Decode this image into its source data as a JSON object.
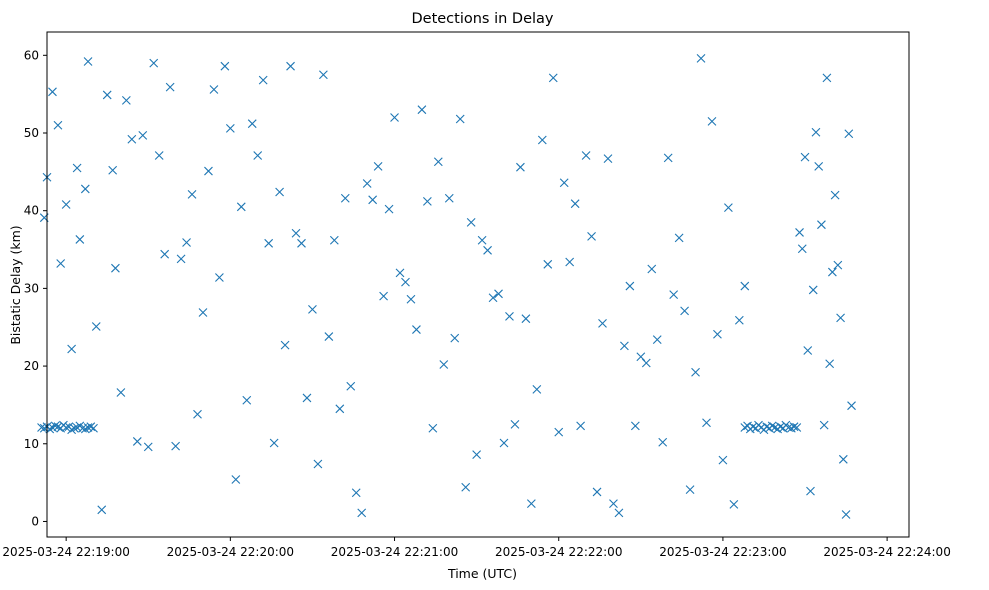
{
  "chart_data": {
    "type": "scatter",
    "title": "Detections in Delay",
    "xlabel": "Time (UTC)",
    "ylabel": "Bistatic Delay (km)",
    "marker": "x",
    "color": "#1f77b4",
    "grid": false,
    "x_ticks": [
      "2025-03-24 22:19:00",
      "2025-03-24 22:20:00",
      "2025-03-24 22:21:00",
      "2025-03-24 22:22:00",
      "2025-03-24 22:23:00",
      "2025-03-24 22:24:00"
    ],
    "y_ticks": [
      0,
      10,
      20,
      30,
      40,
      50,
      60
    ],
    "xlim": [
      "2025-03-24 22:18:53",
      "2025-03-24 22:24:08"
    ],
    "ylim": [
      -2,
      63
    ],
    "series": [
      {
        "x": [
          "22:18:51",
          "22:18:52",
          "22:18:53",
          "22:18:54",
          "22:18:55",
          "22:18:56",
          "22:18:57",
          "22:18:58",
          "22:18:59",
          "22:19:00",
          "22:19:01",
          "22:19:02",
          "22:19:03",
          "22:19:04",
          "22:19:05",
          "22:19:06",
          "22:19:07",
          "22:19:08",
          "22:19:09",
          "22:19:10",
          "22:18:52",
          "22:18:53",
          "22:18:55",
          "22:18:57",
          "22:18:58",
          "22:19:00",
          "22:19:02",
          "22:19:04",
          "22:19:05",
          "22:19:07",
          "22:19:08",
          "22:19:11",
          "22:19:13",
          "22:19:15",
          "22:19:17",
          "22:19:18",
          "22:19:20",
          "22:19:22",
          "22:19:24",
          "22:19:26",
          "22:19:28",
          "22:19:30",
          "22:19:32",
          "22:19:34",
          "22:19:36",
          "22:19:38",
          "22:19:40",
          "22:19:42",
          "22:19:44",
          "22:19:46",
          "22:19:48",
          "22:19:50",
          "22:19:52",
          "22:19:54",
          "22:19:56",
          "22:19:58",
          "22:20:00",
          "22:20:02",
          "22:20:04",
          "22:20:06",
          "22:20:08",
          "22:20:10",
          "22:20:12",
          "22:20:14",
          "22:20:16",
          "22:20:18",
          "22:20:20",
          "22:20:22",
          "22:20:24",
          "22:20:26",
          "22:20:28",
          "22:20:30",
          "22:20:32",
          "22:20:34",
          "22:20:36",
          "22:20:38",
          "22:20:40",
          "22:20:42",
          "22:20:44",
          "22:20:46",
          "22:20:48",
          "22:20:50",
          "22:20:52",
          "22:20:54",
          "22:20:56",
          "22:20:58",
          "22:21:00",
          "22:21:02",
          "22:21:04",
          "22:21:06",
          "22:21:08",
          "22:21:10",
          "22:21:12",
          "22:21:14",
          "22:21:16",
          "22:21:18",
          "22:21:20",
          "22:21:22",
          "22:21:24",
          "22:21:26",
          "22:21:28",
          "22:21:30",
          "22:21:32",
          "22:21:34",
          "22:21:36",
          "22:21:38",
          "22:21:40",
          "22:21:42",
          "22:21:44",
          "22:21:46",
          "22:21:48",
          "22:21:50",
          "22:21:52",
          "22:21:54",
          "22:21:56",
          "22:21:58",
          "22:22:00",
          "22:22:02",
          "22:22:04",
          "22:22:06",
          "22:22:08",
          "22:22:10",
          "22:22:12",
          "22:22:14",
          "22:22:16",
          "22:22:18",
          "22:22:20",
          "22:22:22",
          "22:22:24",
          "22:22:26",
          "22:22:28",
          "22:22:30",
          "22:22:32",
          "22:22:34",
          "22:22:36",
          "22:22:38",
          "22:22:40",
          "22:22:42",
          "22:22:44",
          "22:22:46",
          "22:22:48",
          "22:22:50",
          "22:22:52",
          "22:22:54",
          "22:22:56",
          "22:22:58",
          "22:23:00",
          "22:23:02",
          "22:23:04",
          "22:23:06",
          "22:23:08",
          "22:23:08",
          "22:23:09",
          "22:23:10",
          "22:23:11",
          "22:23:12",
          "22:23:13",
          "22:23:14",
          "22:23:15",
          "22:23:16",
          "22:23:17",
          "22:23:18",
          "22:23:19",
          "22:23:20",
          "22:23:21",
          "22:23:22",
          "22:23:23",
          "22:23:24",
          "22:23:25",
          "22:23:26",
          "22:23:27",
          "22:23:28",
          "22:23:29",
          "22:23:30",
          "22:23:31",
          "22:23:32",
          "22:23:33",
          "22:23:34",
          "22:23:35",
          "22:23:36",
          "22:23:37",
          "22:23:38",
          "22:23:39",
          "22:23:40",
          "22:23:41",
          "22:23:42",
          "22:23:43",
          "22:23:44",
          "22:23:45",
          "22:23:46",
          "22:23:47"
        ],
        "y": [
          12.1,
          12.0,
          12.2,
          11.9,
          12.1,
          12.3,
          12.2,
          12.0,
          12.4,
          12.1,
          12.2,
          11.8,
          12.0,
          12.1,
          12.3,
          12.0,
          11.9,
          12.1,
          12.2,
          12.0,
          39.1,
          44.3,
          55.3,
          51.0,
          33.2,
          40.8,
          22.2,
          45.5,
          36.3,
          42.8,
          59.2,
          25.1,
          1.5,
          54.9,
          45.2,
          32.6,
          16.6,
          54.2,
          49.2,
          10.3,
          49.7,
          9.6,
          59.0,
          47.1,
          34.4,
          55.9,
          9.7,
          33.8,
          35.9,
          42.1,
          13.8,
          26.9,
          45.1,
          55.6,
          31.4,
          58.6,
          50.6,
          5.4,
          40.5,
          15.6,
          51.2,
          47.1,
          56.8,
          35.8,
          10.1,
          42.4,
          22.7,
          58.6,
          37.1,
          35.8,
          15.9,
          27.3,
          7.4,
          57.5,
          23.8,
          36.2,
          14.5,
          41.6,
          17.4,
          3.7,
          1.1,
          43.5,
          41.4,
          45.7,
          29.0,
          40.2,
          52.0,
          32.0,
          30.8,
          28.6,
          24.7,
          53.0,
          41.2,
          12.0,
          46.3,
          20.2,
          41.6,
          23.6,
          51.8,
          4.4,
          38.5,
          8.6,
          36.2,
          34.9,
          28.8,
          29.3,
          10.1,
          26.4,
          12.5,
          45.6,
          26.1,
          2.3,
          17.0,
          49.1,
          33.1,
          57.1,
          11.5,
          43.6,
          33.4,
          40.9,
          12.3,
          47.1,
          36.7,
          3.8,
          25.5,
          46.7,
          2.3,
          1.1,
          22.6,
          30.3,
          12.3,
          21.2,
          20.4,
          32.5,
          23.4,
          10.2,
          46.8,
          29.2,
          36.5,
          27.1,
          4.1,
          19.2,
          59.6,
          12.7,
          51.5,
          24.1,
          7.9,
          40.4,
          2.2,
          25.9,
          30.3,
          12.1,
          12.3,
          11.9,
          12.2,
          12.0,
          12.4,
          12.1,
          11.8,
          12.2,
          12.0,
          12.3,
          12.1,
          11.9,
          12.2,
          12.0,
          12.4,
          12.1,
          12.0,
          12.2,
          12.1,
          37.2,
          35.1,
          46.9,
          22.0,
          3.9,
          29.8,
          50.1,
          45.7,
          38.2,
          12.4,
          57.1,
          20.3,
          32.1,
          42.0,
          33.0,
          26.2,
          8.0,
          0.9,
          49.9,
          14.9
        ]
      }
    ]
  }
}
